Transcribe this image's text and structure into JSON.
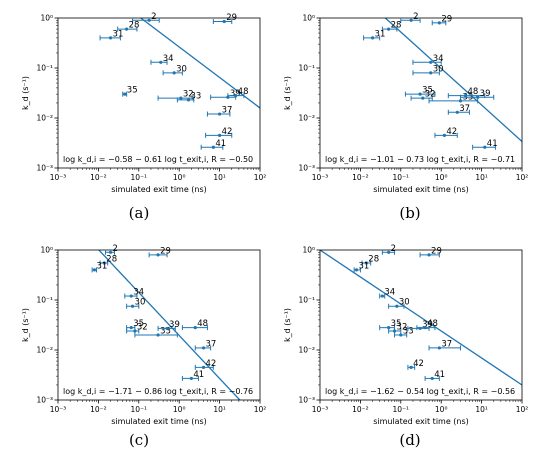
{
  "colors": {
    "marker": "#1f77b4",
    "fit_line": "#1f77b4",
    "axes": "#000000"
  },
  "chart_data": [
    {
      "panel_label": "(a)",
      "type": "scatter",
      "xlabel": "simulated exit time (ns)",
      "ylabel": "k_d (s⁻¹)",
      "xscale": "log",
      "yscale": "log",
      "xlim": [
        0.001,
        100
      ],
      "ylim": [
        0.001,
        1
      ],
      "x_tick_labels": [
        "10⁻³",
        "10⁻²",
        "10⁻¹",
        "10⁰",
        "10¹",
        "10²"
      ],
      "y_tick_labels": [
        "10⁻³",
        "10⁻²",
        "10⁻¹",
        "10⁰"
      ],
      "annotation": "log k_d,i = −0.58 − 0.61 log t_exit,i, R = −0.50",
      "fit": {
        "intercept": -0.58,
        "slope": -0.61
      },
      "points": [
        {
          "label": "2",
          "x": 0.18,
          "y": 0.9,
          "xerr": [
            0.07,
            0.32
          ]
        },
        {
          "label": "28",
          "x": 0.05,
          "y": 0.6,
          "xerr": [
            0.03,
            0.09
          ]
        },
        {
          "label": "31",
          "x": 0.02,
          "y": 0.4,
          "xerr": [
            0.011,
            0.035
          ]
        },
        {
          "label": "29",
          "x": 13,
          "y": 0.85,
          "xerr": [
            7,
            20
          ]
        },
        {
          "label": "34",
          "x": 0.35,
          "y": 0.13,
          "xerr": [
            0.2,
            0.5
          ]
        },
        {
          "label": "30",
          "x": 0.75,
          "y": 0.08,
          "xerr": [
            0.4,
            1.2
          ]
        },
        {
          "label": "35",
          "x": 0.045,
          "y": 0.03,
          "xerr": [
            0.04,
            0.05
          ]
        },
        {
          "label": "32",
          "x": 1.1,
          "y": 0.025,
          "xerr": [
            0.3,
            2.2
          ]
        },
        {
          "label": "33",
          "x": 1.7,
          "y": 0.023,
          "xerr": [
            0.9,
            2.3
          ]
        },
        {
          "label": "39",
          "x": 16,
          "y": 0.026,
          "xerr": [
            6,
            25
          ]
        },
        {
          "label": "48",
          "x": 25,
          "y": 0.028,
          "xerr": [
            16,
            40
          ]
        },
        {
          "label": "37",
          "x": 10,
          "y": 0.012,
          "xerr": [
            5,
            18
          ]
        },
        {
          "label": "42",
          "x": 10,
          "y": 0.0045,
          "xerr": [
            4.5,
            20
          ]
        },
        {
          "label": "41",
          "x": 7,
          "y": 0.0026,
          "xerr": [
            3.5,
            12
          ]
        }
      ]
    },
    {
      "panel_label": "(b)",
      "type": "scatter",
      "xlabel": "simulated exit time (ns)",
      "ylabel": "k_d (s⁻¹)",
      "xscale": "log",
      "yscale": "log",
      "xlim": [
        0.001,
        100
      ],
      "ylim": [
        0.001,
        1
      ],
      "x_tick_labels": [
        "10⁻³",
        "10⁻²",
        "10⁻¹",
        "10⁰",
        "10¹",
        "10²"
      ],
      "y_tick_labels": [
        "10⁻³",
        "10⁻²",
        "10⁻¹",
        "10⁰"
      ],
      "annotation": "log k_d,i = −1.01 − 0.73 log t_exit,i, R = −0.71",
      "fit": {
        "intercept": -1.01,
        "slope": -0.73
      },
      "points": [
        {
          "label": "2",
          "x": 0.18,
          "y": 0.9,
          "xerr": [
            0.1,
            0.3
          ]
        },
        {
          "label": "28",
          "x": 0.05,
          "y": 0.6,
          "xerr": [
            0.035,
            0.08
          ]
        },
        {
          "label": "31",
          "x": 0.02,
          "y": 0.4,
          "xerr": [
            0.012,
            0.03
          ]
        },
        {
          "label": "29",
          "x": 0.9,
          "y": 0.8,
          "xerr": [
            0.6,
            1.3
          ]
        },
        {
          "label": "34",
          "x": 0.55,
          "y": 0.13,
          "xerr": [
            0.2,
            1.0
          ]
        },
        {
          "label": "30",
          "x": 0.55,
          "y": 0.08,
          "xerr": [
            0.2,
            0.9
          ]
        },
        {
          "label": "35",
          "x": 0.3,
          "y": 0.03,
          "xerr": [
            0.13,
            0.7
          ]
        },
        {
          "label": "32",
          "x": 0.35,
          "y": 0.025,
          "xerr": [
            0.18,
            0.6
          ]
        },
        {
          "label": "33",
          "x": 3,
          "y": 0.022,
          "xerr": [
            0.5,
            8
          ]
        },
        {
          "label": "48",
          "x": 4,
          "y": 0.028,
          "xerr": [
            1.5,
            12
          ]
        },
        {
          "label": "39",
          "x": 8,
          "y": 0.026,
          "xerr": [
            3,
            20
          ]
        },
        {
          "label": "37",
          "x": 2.5,
          "y": 0.013,
          "xerr": [
            1.5,
            5
          ]
        },
        {
          "label": "42",
          "x": 1.2,
          "y": 0.0045,
          "xerr": [
            0.7,
            2.5
          ]
        },
        {
          "label": "41",
          "x": 12,
          "y": 0.0026,
          "xerr": [
            6,
            22
          ]
        }
      ]
    },
    {
      "panel_label": "(c)",
      "type": "scatter",
      "xlabel": "simulated exit time (ns)",
      "ylabel": "k_d (s⁻¹)",
      "xscale": "log",
      "yscale": "log",
      "xlim": [
        0.001,
        100
      ],
      "ylim": [
        0.001,
        1
      ],
      "x_tick_labels": [
        "10⁻³",
        "10⁻²",
        "10⁻¹",
        "10⁰",
        "10¹",
        "10²"
      ],
      "y_tick_labels": [
        "10⁻³",
        "10⁻²",
        "10⁻¹",
        "10⁰"
      ],
      "annotation": "log k_d,i = −1.71 − 0.86 log t_exit,i, R = −0.76",
      "fit": {
        "intercept": -1.71,
        "slope": -0.86
      },
      "points": [
        {
          "label": "2",
          "x": 0.02,
          "y": 0.9,
          "xerr": [
            0.015,
            0.025
          ]
        },
        {
          "label": "28",
          "x": 0.014,
          "y": 0.55,
          "xerr": [
            0.011,
            0.017
          ]
        },
        {
          "label": "31",
          "x": 0.008,
          "y": 0.4,
          "xerr": [
            0.007,
            0.009
          ]
        },
        {
          "label": "29",
          "x": 0.3,
          "y": 0.8,
          "xerr": [
            0.18,
            0.5
          ]
        },
        {
          "label": "34",
          "x": 0.065,
          "y": 0.12,
          "xerr": [
            0.045,
            0.09
          ]
        },
        {
          "label": "30",
          "x": 0.07,
          "y": 0.075,
          "xerr": [
            0.05,
            0.1
          ]
        },
        {
          "label": "35",
          "x": 0.065,
          "y": 0.028,
          "xerr": [
            0.05,
            0.08
          ]
        },
        {
          "label": "32",
          "x": 0.08,
          "y": 0.024,
          "xerr": [
            0.05,
            0.1
          ]
        },
        {
          "label": "33",
          "x": 0.3,
          "y": 0.02,
          "xerr": [
            0.08,
            0.9
          ]
        },
        {
          "label": "39",
          "x": 0.5,
          "y": 0.027,
          "xerr": [
            0.3,
            0.8
          ]
        },
        {
          "label": "48",
          "x": 2.5,
          "y": 0.028,
          "xerr": [
            1.2,
            5
          ]
        },
        {
          "label": "37",
          "x": 4,
          "y": 0.011,
          "xerr": [
            2.5,
            6
          ]
        },
        {
          "label": "42",
          "x": 4,
          "y": 0.0045,
          "xerr": [
            2.5,
            7
          ]
        },
        {
          "label": "41",
          "x": 2,
          "y": 0.0027,
          "xerr": [
            1.2,
            3
          ]
        }
      ]
    },
    {
      "panel_label": "(d)",
      "type": "scatter",
      "xlabel": "simulated exit time (ns)",
      "ylabel": "k_d (s⁻¹)",
      "xscale": "log",
      "yscale": "log",
      "xlim": [
        0.001,
        100
      ],
      "ylim": [
        0.001,
        1
      ],
      "x_tick_labels": [
        "10⁻³",
        "10⁻²",
        "10⁻¹",
        "10⁰",
        "10¹",
        "10²"
      ],
      "y_tick_labels": [
        "10⁻³",
        "10⁻²",
        "10⁻¹",
        "10⁰"
      ],
      "annotation": "log k_d,i = −1.62 − 0.54 log t_exit,i, R = −0.56",
      "fit": {
        "intercept": -1.62,
        "slope": -0.54
      },
      "points": [
        {
          "label": "2",
          "x": 0.05,
          "y": 0.9,
          "xerr": [
            0.035,
            0.07
          ]
        },
        {
          "label": "28",
          "x": 0.014,
          "y": 0.55,
          "xerr": [
            0.011,
            0.018
          ]
        },
        {
          "label": "31",
          "x": 0.008,
          "y": 0.4,
          "xerr": [
            0.007,
            0.01
          ]
        },
        {
          "label": "29",
          "x": 0.5,
          "y": 0.8,
          "xerr": [
            0.3,
            0.9
          ]
        },
        {
          "label": "34",
          "x": 0.035,
          "y": 0.12,
          "xerr": [
            0.03,
            0.04
          ]
        },
        {
          "label": "30",
          "x": 0.08,
          "y": 0.075,
          "xerr": [
            0.05,
            0.12
          ]
        },
        {
          "label": "35",
          "x": 0.05,
          "y": 0.028,
          "xerr": [
            0.03,
            0.07
          ]
        },
        {
          "label": "32",
          "x": 0.07,
          "y": 0.024,
          "xerr": [
            0.05,
            0.1
          ]
        },
        {
          "label": "33",
          "x": 0.1,
          "y": 0.02,
          "xerr": [
            0.07,
            0.14
          ]
        },
        {
          "label": "39",
          "x": 0.3,
          "y": 0.027,
          "xerr": [
            0.15,
            0.5
          ]
        },
        {
          "label": "48",
          "x": 0.4,
          "y": 0.028,
          "xerr": [
            0.25,
            0.7
          ]
        },
        {
          "label": "37",
          "x": 0.9,
          "y": 0.011,
          "xerr": [
            0.5,
            3
          ]
        },
        {
          "label": "42",
          "x": 0.18,
          "y": 0.0045,
          "xerr": [
            0.15,
            0.22
          ]
        },
        {
          "label": "41",
          "x": 0.6,
          "y": 0.0027,
          "xerr": [
            0.4,
            0.9
          ]
        }
      ]
    }
  ]
}
